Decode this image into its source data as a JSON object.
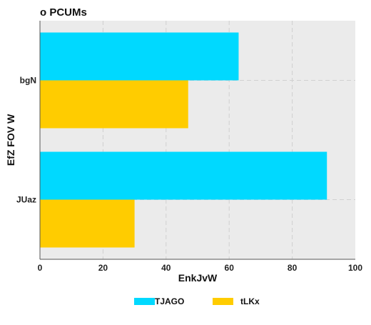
{
  "chart_data": {
    "type": "bar",
    "orientation": "horizontal",
    "title": "o PCUMs",
    "xlabel": "EnkJvW",
    "ylabel": "EfZ FOV W",
    "categories": [
      "bgN",
      "JUaz"
    ],
    "series": [
      {
        "name": "TJAGO",
        "values": [
          63,
          91
        ],
        "color": "#00d9ff"
      },
      {
        "name": "tLKx",
        "values": [
          47,
          30
        ],
        "color": "#ffcc00"
      }
    ],
    "xlim": [
      0,
      100
    ],
    "xticks": [
      0,
      20,
      40,
      60,
      80,
      100
    ],
    "grid": true,
    "legend_position": "bottom"
  }
}
